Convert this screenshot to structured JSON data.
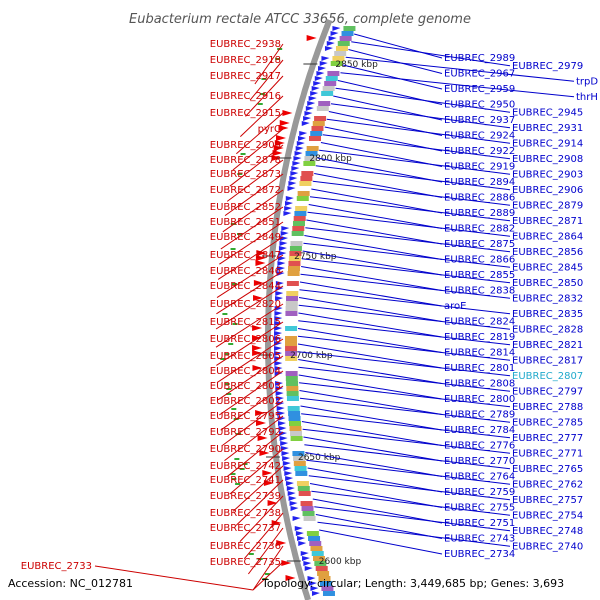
{
  "title": "Eubacterium rectale ATCC 33656, complete genome",
  "footer": {
    "accession": "Accession: NC_012781",
    "topology": "Topology: circular; Length: 3,449,685 bp; Genes: 3,693"
  },
  "colors": {
    "left_label": "#cc0000",
    "right_label": "#0000cc",
    "highlight_label": "#22aacc",
    "ring": "#999999",
    "forward_gene": "#ee0000",
    "reverse_gene": "#2222ee"
  },
  "ticks": [
    "2850 kbp",
    "2800 kbp",
    "2750 kbp",
    "2700 kbp",
    "2650 kbp",
    "2600 kbp"
  ],
  "left_labels": [
    "EUBREC_2938",
    "EUBREC_2918",
    "EUBREC_2917",
    "EUBREC_2916",
    "EUBREC_2915",
    "pyrC",
    "EUBREC_2909",
    "EUBREC_2878",
    "EUBREC_2873",
    "EUBREC_2872",
    "EUBREC_2852",
    "EUBREC_2851",
    "EUBREC_2849",
    "EUBREC_2847",
    "EUBREC_2846",
    "EUBREC_2844",
    "EUBREC_2820",
    "EUBREC_2815",
    "EUBREC_2806",
    "EUBREC_2805",
    "EUBREC_2804",
    "EUBREC_2803",
    "EUBREC_2802",
    "EUBREC_2795",
    "EUBREC_2792",
    "EUBREC_2790",
    "EUBREC_2742",
    "EUBREC_2741",
    "EUBREC_2739",
    "EUBREC_2738",
    "EUBREC_2737",
    "EUBREC_2736",
    "EUBREC_2735",
    "EUBREC_2733"
  ],
  "right_labels": [
    "EUBREC_2989",
    "EUBREC_2979",
    "EUBREC_2967",
    "trpD",
    "EUBREC_2959",
    "thrH",
    "EUBREC_2950",
    "EUBREC_2945",
    "EUBREC_2937",
    "EUBREC_2931",
    "EUBREC_2924",
    "EUBREC_2914",
    "EUBREC_2922",
    "EUBREC_2908",
    "EUBREC_2919",
    "EUBREC_2903",
    "EUBREC_2894",
    "EUBREC_2906",
    "EUBREC_2886",
    "EUBREC_2879",
    "EUBREC_2889",
    "EUBREC_2871",
    "EUBREC_2882",
    "EUBREC_2864",
    "EUBREC_2875",
    "EUBREC_2856",
    "EUBREC_2866",
    "EUBREC_2845",
    "EUBREC_2855",
    "EUBREC_2850",
    "EUBREC_2838",
    "EUBREC_2832",
    "aroE",
    "EUBREC_2835",
    "EUBREC_2824",
    "EUBREC_2828",
    "EUBREC_2819",
    "EUBREC_2821",
    "EUBREC_2814",
    "EUBREC_2817",
    "EUBREC_2801",
    "EUBREC_2807",
    "EUBREC_2808",
    "EUBREC_2797",
    "EUBREC_2800",
    "EUBREC_2788",
    "EUBREC_2789",
    "EUBREC_2785",
    "EUBREC_2784",
    "EUBREC_2777",
    "EUBREC_2776",
    "EUBREC_2771",
    "EUBREC_2770",
    "EUBREC_2765",
    "EUBREC_2764",
    "EUBREC_2762",
    "EUBREC_2759",
    "EUBREC_2757",
    "EUBREC_2755",
    "EUBREC_2754",
    "EUBREC_2751",
    "EUBREC_2748",
    "EUBREC_2743",
    "EUBREC_2740",
    "EUBREC_2734"
  ],
  "highlighted_label": "EUBREC_2807"
}
